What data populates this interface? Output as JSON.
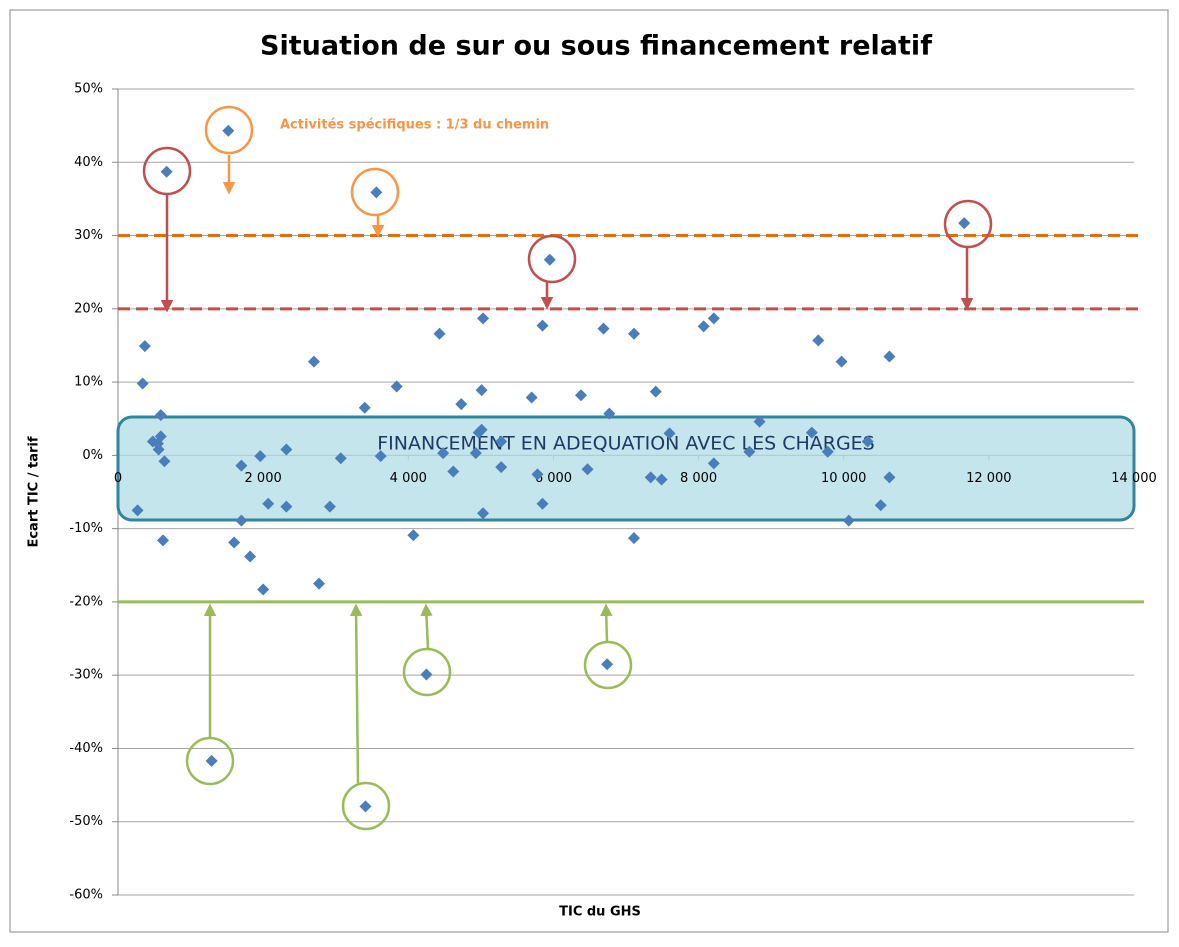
{
  "chart_data": {
    "type": "scatter",
    "title": "Situation de sur ou sous financement relatif",
    "x_label": "TIC du GHS",
    "y_label": "Ecart TIC / tarif",
    "annotation": "Activités spécifiques : 1/3 du chemin",
    "box_label": "FINANCEMENT EN ADEQUATION AVEC LES CHARGES",
    "color": "#4a7ebb",
    "grid": true,
    "xlim": [
      0,
      14000
    ],
    "ylim": [
      -60,
      50
    ],
    "xticks": [
      0,
      {
        "value": 2000,
        "label": "2 000"
      },
      {
        "value": 4000,
        "label": "4 000"
      },
      {
        "value": 6000,
        "label": "6 000"
      },
      {
        "value": 8000,
        "label": "8 000"
      },
      {
        "value": 10000,
        "label": "10 000"
      },
      {
        "value": 12000,
        "label": "12 000"
      },
      {
        "value": 14000,
        "label": "14 000"
      }
    ],
    "yticks": [
      {
        "value": -60,
        "label": "-60%"
      },
      {
        "value": -50,
        "label": "-50%"
      },
      {
        "value": -40,
        "label": "-40%"
      },
      {
        "value": -30,
        "label": "-30%"
      },
      {
        "value": -20,
        "label": "-20%"
      },
      {
        "value": -10,
        "label": "-10%"
      },
      {
        "value": 0,
        "label": "0%"
      },
      {
        "value": 10,
        "label": "10%"
      },
      {
        "value": 20,
        "label": "20%"
      },
      {
        "value": 30,
        "label": "30%"
      },
      {
        "value": 40,
        "label": "40%"
      },
      {
        "value": 50,
        "label": "50%"
      }
    ],
    "reference_lines": [
      {
        "value": 30,
        "color": "#e46c0a",
        "style": "dashed"
      },
      {
        "value": 20,
        "color": "#c0504d",
        "style": "dashed"
      },
      {
        "value": -20,
        "color": "#9bbb59",
        "style": "solid"
      }
    ],
    "x": [
      270,
      370,
      340,
      480,
      550,
      590,
      590,
      560,
      640,
      620,
      670,
      1520,
      1290,
      1600,
      1700,
      1700,
      1820,
      1960,
      2000,
      2070,
      2320,
      2320,
      2700,
      2770,
      2920,
      3070,
      3400,
      3410,
      3560,
      3620,
      3840,
      4070,
      4250,
      4430,
      4480,
      4620,
      4730,
      4930,
      4970,
      5010,
      5010,
      5030,
      5030,
      5280,
      5280,
      5700,
      5780,
      5850,
      5850,
      5950,
      6380,
      6470,
      6690,
      6770,
      6740,
      7110,
      7110,
      7340,
      7410,
      7490,
      7600,
      8070,
      8210,
      8210,
      8700,
      8840,
      9560,
      9650,
      9780,
      9970,
      10070,
      10330,
      10510,
      10630,
      10630,
      11660
    ],
    "values": [
      -7.5,
      14.9,
      9.8,
      1.9,
      1.6,
      2.6,
      5.5,
      0.8,
      -0.8,
      -11.6,
      38.7,
      44.3,
      -41.7,
      -11.9,
      -8.9,
      -1.4,
      -13.8,
      -0.1,
      -18.3,
      -6.6,
      -7,
      0.8,
      12.8,
      -17.5,
      -7,
      -0.4,
      6.5,
      -47.9,
      35.9,
      -0.1,
      9.4,
      -10.9,
      -29.9,
      16.6,
      0.3,
      -2.2,
      7,
      0.3,
      3.1,
      3.5,
      8.9,
      18.7,
      -7.9,
      1.9,
      -1.6,
      7.9,
      -2.6,
      -6.6,
      17.7,
      26.7,
      8.2,
      -1.9,
      17.3,
      5.7,
      -28.5,
      16.6,
      -11.3,
      -3,
      8.7,
      -3.3,
      3,
      17.6,
      18.7,
      -1.1,
      0.5,
      4.6,
      3.1,
      15.7,
      0.5,
      12.8,
      -8.9,
      1.9,
      -6.8,
      13.5,
      -3,
      31.7
    ]
  }
}
